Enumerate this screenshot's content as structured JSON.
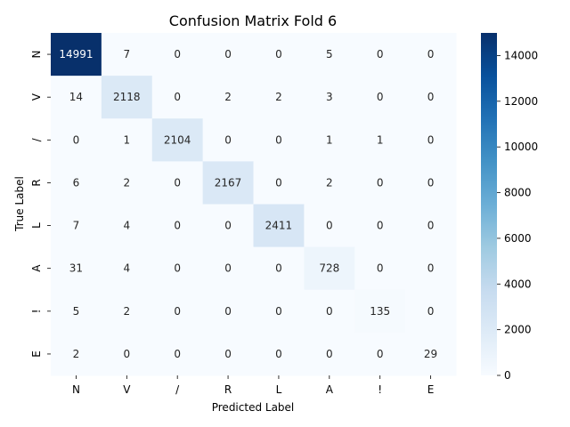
{
  "chart_data": {
    "type": "heatmap",
    "title": "Confusion Matrix Fold 6",
    "xlabel": "Predicted Label",
    "ylabel": "True Label",
    "x_categories": [
      "N",
      "V",
      "/",
      "R",
      "L",
      "A",
      "!",
      "E"
    ],
    "y_categories": [
      "N",
      "V",
      "/",
      "R",
      "L",
      "A",
      "!",
      "E"
    ],
    "values": [
      [
        14991,
        7,
        0,
        0,
        0,
        5,
        0,
        0
      ],
      [
        14,
        2118,
        0,
        2,
        2,
        3,
        0,
        0
      ],
      [
        0,
        1,
        2104,
        0,
        0,
        1,
        1,
        0
      ],
      [
        6,
        2,
        0,
        2167,
        0,
        2,
        0,
        0
      ],
      [
        7,
        4,
        0,
        0,
        2411,
        0,
        0,
        0
      ],
      [
        31,
        4,
        0,
        0,
        0,
        728,
        0,
        0
      ],
      [
        5,
        2,
        0,
        0,
        0,
        0,
        135,
        0
      ],
      [
        2,
        0,
        0,
        0,
        0,
        0,
        0,
        29
      ]
    ],
    "colormap": "Blues",
    "color_range": [
      0,
      14991
    ],
    "colorbar_ticks": [
      0,
      2000,
      4000,
      6000,
      8000,
      10000,
      12000,
      14000
    ],
    "colorbar_tick_labels": [
      "0",
      "2000",
      "4000",
      "6000",
      "8000",
      "10000",
      "12000",
      "14000"
    ],
    "annotations": true
  }
}
